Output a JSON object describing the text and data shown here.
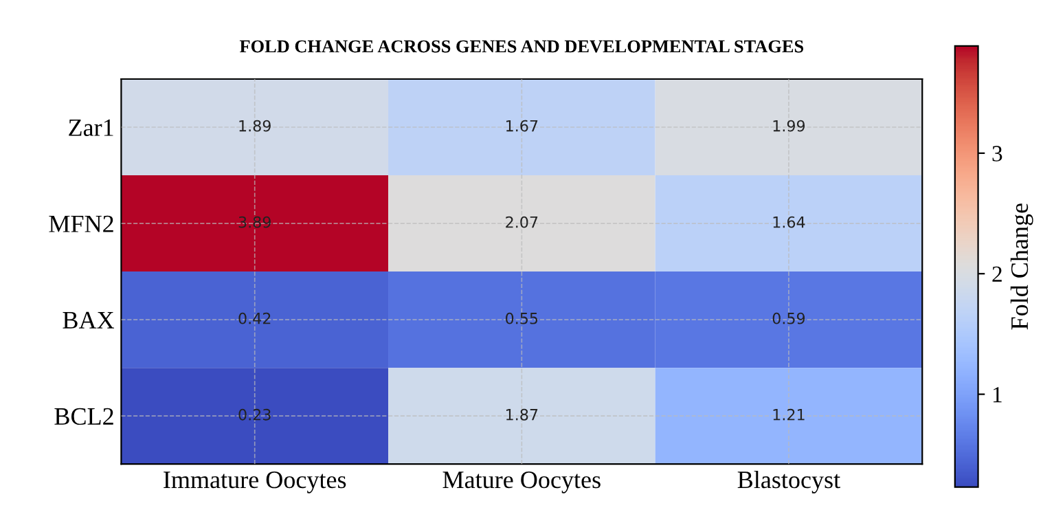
{
  "chart_data": {
    "type": "heatmap",
    "title": "FOLD CHANGE ACROSS GENES AND DEVELOPMENTAL STAGES",
    "clabel": "Fold Change",
    "categories": [
      "Immature Oocytes",
      "Mature Oocytes",
      "Blastocyst"
    ],
    "y_categories": [
      "Zar1",
      "MFN2",
      "BAX",
      "BCL2"
    ],
    "cells": [
      [
        1.89,
        1.67,
        1.99
      ],
      [
        3.89,
        2.07,
        1.64
      ],
      [
        0.42,
        0.55,
        0.59
      ],
      [
        0.23,
        1.87,
        1.21
      ]
    ],
    "clim": [
      0.23,
      3.89
    ],
    "cticks": [
      1,
      2,
      3
    ],
    "data_labels": true,
    "grid": true
  }
}
